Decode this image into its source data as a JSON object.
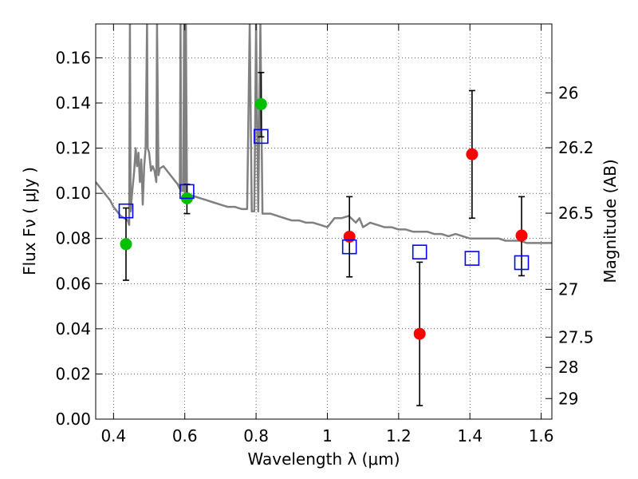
{
  "chart_data": {
    "type": "scatter",
    "xlabel": "Wavelength  λ (μm)",
    "ylabel": "Flux  Fν  ( μJy )",
    "ylabel_right": "Magnitude (AB)",
    "xlim": [
      0.35,
      1.63
    ],
    "ylim": [
      0.0,
      0.175
    ],
    "grid": true,
    "x_ticks": [
      0.4,
      0.6,
      0.8,
      1.0,
      1.2,
      1.4,
      1.6
    ],
    "x_tick_labels": [
      "0.4",
      "0.6",
      "0.8",
      "1",
      "1.2",
      "1.4",
      "1.6"
    ],
    "y_ticks": [
      0.0,
      0.02,
      0.04,
      0.06,
      0.08,
      0.1,
      0.12,
      0.14,
      0.16
    ],
    "y_tick_labels": [
      "0.00",
      "0.02",
      "0.04",
      "0.06",
      "0.08",
      "0.10",
      "0.12",
      "0.14",
      "0.16"
    ],
    "right_ticks": [
      {
        "label": "26",
        "flux": 0.1445
      },
      {
        "label": "26.2",
        "flux": 0.1202
      },
      {
        "label": "26.5",
        "flux": 0.0912
      },
      {
        "label": "27",
        "flux": 0.0575
      },
      {
        "label": "27.5",
        "flux": 0.0363
      },
      {
        "label": "28",
        "flux": 0.0229
      },
      {
        "label": "29",
        "flux": 0.0091
      }
    ],
    "series": [
      {
        "kind": "observed_green",
        "color": "#00c000",
        "points": [
          {
            "x": 0.435,
            "y": 0.0775,
            "ylo": 0.0615,
            "yhi": 0.0935
          },
          {
            "x": 0.606,
            "y": 0.0978,
            "ylo": 0.091,
            "yhi": 0.104
          },
          {
            "x": 0.814,
            "y": 0.1395,
            "ylo": 0.125,
            "yhi": 0.1535
          }
        ]
      },
      {
        "kind": "observed_red",
        "color": "#ff0000",
        "points": [
          {
            "x": 1.062,
            "y": 0.0808,
            "ylo": 0.063,
            "yhi": 0.0985
          },
          {
            "x": 1.259,
            "y": 0.0378,
            "ylo": 0.006,
            "yhi": 0.0695
          },
          {
            "x": 1.406,
            "y": 0.1173,
            "ylo": 0.089,
            "yhi": 0.1455
          },
          {
            "x": 1.545,
            "y": 0.0813,
            "ylo": 0.0635,
            "yhi": 0.0985
          }
        ]
      },
      {
        "kind": "model_squares",
        "color": "#0000ff",
        "points": [
          {
            "x": 0.435,
            "y": 0.0922
          },
          {
            "x": 0.606,
            "y": 0.1008
          },
          {
            "x": 0.814,
            "y": 0.1252
          },
          {
            "x": 1.062,
            "y": 0.0763
          },
          {
            "x": 1.259,
            "y": 0.074
          },
          {
            "x": 1.406,
            "y": 0.0712
          },
          {
            "x": 1.545,
            "y": 0.0693
          }
        ]
      }
    ],
    "model_spectrum": {
      "color": "#808080",
      "points": [
        [
          0.35,
          0.105
        ],
        [
          0.36,
          0.103
        ],
        [
          0.37,
          0.101
        ],
        [
          0.38,
          0.099
        ],
        [
          0.39,
          0.097
        ],
        [
          0.4,
          0.094
        ],
        [
          0.41,
          0.092
        ],
        [
          0.42,
          0.09
        ],
        [
          0.43,
          0.089
        ],
        [
          0.44,
          0.088
        ],
        [
          0.444,
          0.086
        ],
        [
          0.446,
          0.175
        ],
        [
          0.448,
          0.092
        ],
        [
          0.452,
          0.1
        ],
        [
          0.458,
          0.11
        ],
        [
          0.462,
          0.12
        ],
        [
          0.466,
          0.112
        ],
        [
          0.47,
          0.118
        ],
        [
          0.474,
          0.105
        ],
        [
          0.478,
          0.115
        ],
        [
          0.482,
          0.095
        ],
        [
          0.486,
          0.112
        ],
        [
          0.49,
          0.12
        ],
        [
          0.494,
          0.175
        ],
        [
          0.496,
          0.12
        ],
        [
          0.5,
          0.118
        ],
        [
          0.505,
          0.11
        ],
        [
          0.51,
          0.112
        ],
        [
          0.515,
          0.11
        ],
        [
          0.52,
          0.105
        ],
        [
          0.522,
          0.175
        ],
        [
          0.526,
          0.108
        ],
        [
          0.53,
          0.111
        ],
        [
          0.54,
          0.112
        ],
        [
          0.55,
          0.11
        ],
        [
          0.56,
          0.108
        ],
        [
          0.57,
          0.106
        ],
        [
          0.58,
          0.104
        ],
        [
          0.586,
          0.102
        ],
        [
          0.588,
          0.175
        ],
        [
          0.59,
          0.101
        ],
        [
          0.596,
          0.101
        ],
        [
          0.598,
          0.175
        ],
        [
          0.6,
          0.1
        ],
        [
          0.603,
          0.175
        ],
        [
          0.606,
          0.1
        ],
        [
          0.62,
          0.099
        ],
        [
          0.64,
          0.098
        ],
        [
          0.66,
          0.097
        ],
        [
          0.68,
          0.096
        ],
        [
          0.7,
          0.095
        ],
        [
          0.72,
          0.094
        ],
        [
          0.74,
          0.094
        ],
        [
          0.76,
          0.093
        ],
        [
          0.775,
          0.093
        ],
        [
          0.782,
          0.175
        ],
        [
          0.788,
          0.092
        ],
        [
          0.795,
          0.092
        ],
        [
          0.8,
          0.175
        ],
        [
          0.806,
          0.092
        ],
        [
          0.812,
          0.175
        ],
        [
          0.818,
          0.091
        ],
        [
          0.84,
          0.091
        ],
        [
          0.86,
          0.09
        ],
        [
          0.88,
          0.089
        ],
        [
          0.9,
          0.088
        ],
        [
          0.92,
          0.088
        ],
        [
          0.94,
          0.087
        ],
        [
          0.96,
          0.087
        ],
        [
          0.98,
          0.086
        ],
        [
          1.0,
          0.085
        ],
        [
          1.02,
          0.089
        ],
        [
          1.04,
          0.089
        ],
        [
          1.06,
          0.09
        ],
        [
          1.08,
          0.087
        ],
        [
          1.09,
          0.089
        ],
        [
          1.1,
          0.085
        ],
        [
          1.12,
          0.087
        ],
        [
          1.14,
          0.086
        ],
        [
          1.16,
          0.085
        ],
        [
          1.18,
          0.085
        ],
        [
          1.2,
          0.084
        ],
        [
          1.22,
          0.084
        ],
        [
          1.24,
          0.083
        ],
        [
          1.26,
          0.083
        ],
        [
          1.28,
          0.083
        ],
        [
          1.3,
          0.082
        ],
        [
          1.32,
          0.082
        ],
        [
          1.34,
          0.081
        ],
        [
          1.36,
          0.082
        ],
        [
          1.38,
          0.081
        ],
        [
          1.4,
          0.08
        ],
        [
          1.42,
          0.08
        ],
        [
          1.44,
          0.08
        ],
        [
          1.46,
          0.08
        ],
        [
          1.48,
          0.08
        ],
        [
          1.5,
          0.079
        ],
        [
          1.52,
          0.079
        ],
        [
          1.54,
          0.079
        ],
        [
          1.56,
          0.078
        ],
        [
          1.58,
          0.078
        ],
        [
          1.6,
          0.078
        ],
        [
          1.63,
          0.078
        ]
      ]
    }
  }
}
